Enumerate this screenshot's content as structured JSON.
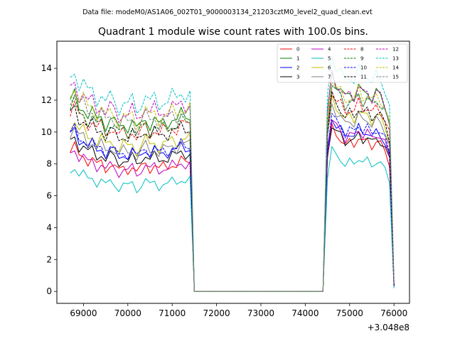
{
  "figure": {
    "suptitle": "Data file: modeM0/AS1A06_002T01_9000003134_21203cztM0_level2_quad_clean.evt"
  },
  "chart_data": {
    "type": "line",
    "title": "Quadrant 1 module wise count rates with 100.0s bins.",
    "xlabel": "",
    "ylabel": "",
    "x_offset_label": "+3.048e8",
    "xlim": [
      68400,
      76350
    ],
    "ylim": [
      -0.75,
      15.7
    ],
    "xticks": [
      69000,
      70000,
      71000,
      72000,
      73000,
      74000,
      75000,
      76000
    ],
    "xtick_labels": [
      "69000",
      "70000",
      "71000",
      "72000",
      "73000",
      "74000",
      "75000",
      "76000"
    ],
    "yticks": [
      0,
      2,
      4,
      6,
      8,
      10,
      12,
      14
    ],
    "ytick_labels": [
      "0",
      "2",
      "4",
      "6",
      "8",
      "10",
      "12",
      "14"
    ],
    "legend_location": "upper right",
    "legend_columns": 4,
    "segments": [
      {
        "start": 68700,
        "count": 28,
        "step": 100
      },
      {
        "start": 71500,
        "count": 30,
        "step": 100
      },
      {
        "start": 74500,
        "count": 16,
        "step": 100
      }
    ],
    "shape1": [
      1.0,
      1.05,
      0.97,
      0.99,
      0.93,
      0.96,
      0.9,
      0.94,
      0.88,
      0.92,
      0.9,
      0.86,
      0.9,
      0.87,
      0.91,
      0.85,
      0.89,
      0.93,
      0.88,
      0.92,
      0.87,
      0.91,
      0.89,
      0.93,
      0.9,
      0.95,
      0.92,
      0.94
    ],
    "shape2": [
      0.85,
      1.05,
      1.0,
      0.98,
      0.93,
      0.96,
      0.94,
      0.99,
      0.95,
      0.97,
      0.93,
      0.96,
      0.94,
      0.9,
      0.82,
      0.62
    ],
    "series": [
      {
        "name": "0",
        "color": "#ff0000",
        "dash": "solid",
        "level1": 8.7,
        "level2": 9.8,
        "final": 0.3
      },
      {
        "name": "1",
        "color": "#008000",
        "dash": "solid",
        "level1": 11.8,
        "level2": 13.0,
        "final": 0.5
      },
      {
        "name": "2",
        "color": "#0000ff",
        "dash": "solid",
        "level1": 9.7,
        "level2": 10.4,
        "final": 0.3
      },
      {
        "name": "3",
        "color": "#000000",
        "dash": "solid",
        "level1": 9.3,
        "level2": 10.0,
        "final": 0.3
      },
      {
        "name": "4",
        "color": "#bf00bf",
        "dash": "solid",
        "level1": 8.6,
        "level2": 10.3,
        "final": 0.3
      },
      {
        "name": "5",
        "color": "#00bfbf",
        "dash": "solid",
        "level1": 7.5,
        "level2": 8.5,
        "final": 0.2
      },
      {
        "name": "6",
        "color": "#bfbf00",
        "dash": "solid",
        "level1": 10.3,
        "level2": 11.5,
        "final": 0.4
      },
      {
        "name": "7",
        "color": "#808080",
        "dash": "solid",
        "level1": 9.9,
        "level2": 11.2,
        "final": 0.4
      },
      {
        "name": "8",
        "color": "#ff0000",
        "dash": "dashed",
        "level1": 11.2,
        "level2": 12.0,
        "final": 0.4
      },
      {
        "name": "9",
        "color": "#008000",
        "dash": "dashed",
        "level1": 11.4,
        "level2": 12.5,
        "final": 0.5
      },
      {
        "name": "10",
        "color": "#0000ff",
        "dash": "dashed",
        "level1": 9.8,
        "level2": 10.6,
        "final": 0.3
      },
      {
        "name": "11",
        "color": "#000000",
        "dash": "dashed",
        "level1": 11.0,
        "level2": 11.7,
        "final": 0.4
      },
      {
        "name": "12",
        "color": "#bf00bf",
        "dash": "dashed",
        "level1": 12.6,
        "level2": 13.0,
        "final": 0.5
      },
      {
        "name": "13",
        "color": "#00bfbf",
        "dash": "dashed",
        "level1": 13.3,
        "level2": 14.1,
        "final": 0.6
      },
      {
        "name": "14",
        "color": "#bfbf00",
        "dash": "dashed",
        "level1": 12.3,
        "level2": 12.8,
        "final": 0.5
      },
      {
        "name": "15",
        "color": "#808080",
        "dash": "dashed",
        "level1": 12.0,
        "level2": 12.5,
        "final": 0.5
      }
    ]
  }
}
